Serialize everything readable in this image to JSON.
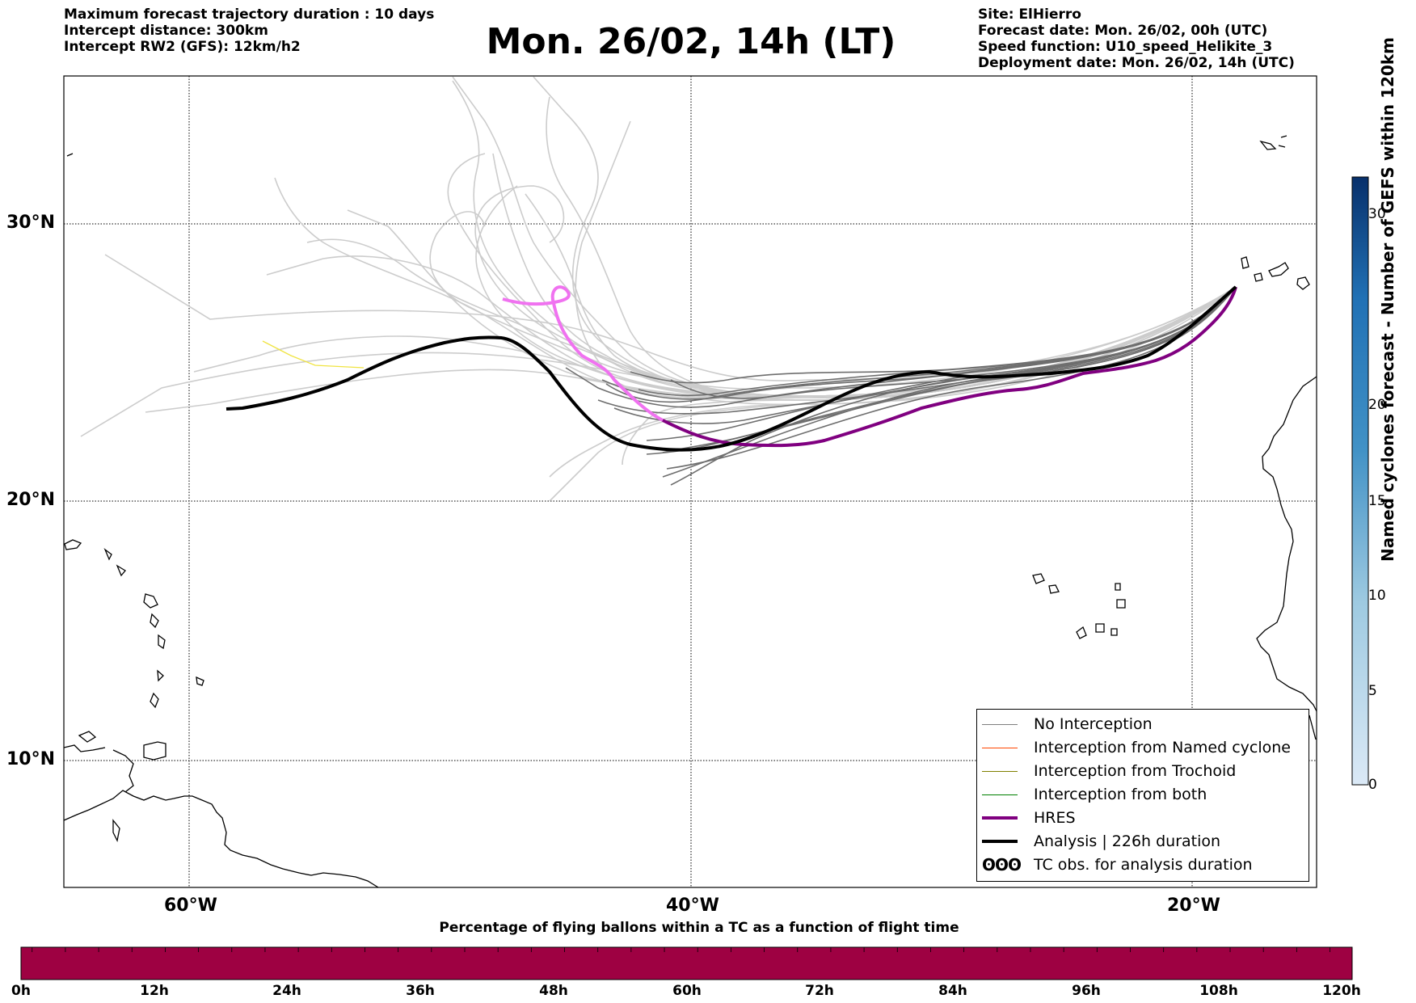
{
  "header": {
    "left_lines": [
      "Maximum forecast trajectory duration : 10 days",
      "Intercept distance: 300km",
      "Intercept RW2 (GFS):  12km/h2"
    ],
    "title": "Mon. 26/02, 14h (LT)",
    "right_lines": [
      "Site: ElHierro",
      "Forecast date: Mon. 26/02, 00h (UTC)",
      "Speed function: U10_speed_Helikite_3",
      "Deployment date: Mon. 26/02, 14h (UTC)"
    ]
  },
  "map": {
    "lon_range": [
      -65,
      -15
    ],
    "lat_range": [
      5,
      35
    ],
    "lat_labels": [
      "30°N",
      "20°N",
      "10°N"
    ],
    "lon_labels": [
      "60°W",
      "40°W",
      "20°W"
    ],
    "gridlines": true
  },
  "legend": {
    "items": [
      {
        "label": "No Interception",
        "color": "#7f7f7f"
      },
      {
        "label": "Interception from Named cyclone",
        "color": "#ff4500"
      },
      {
        "label": "Interception from Trochoid",
        "color": "#808000"
      },
      {
        "label": "Interception from both",
        "color": "#008000"
      },
      {
        "label": "HRES",
        "color": "#800080"
      },
      {
        "label": "Analysis | 226h duration",
        "color": "#000000"
      },
      {
        "label": "TC obs. for analysis duration",
        "glyph": "ʘʘʘ"
      }
    ]
  },
  "colorbar": {
    "label": "Named cyclones forecast - Number of GEFS within 120km",
    "ticks": [
      "0",
      "5",
      "10",
      "15",
      "20",
      "30"
    ],
    "colors": [
      "#dbe9f6",
      "#c6dbef",
      "#9ecae1",
      "#6baed6",
      "#4292c6",
      "#2171b5",
      "#08519c",
      "#08306b"
    ]
  },
  "time_bar": {
    "title": "Percentage of flying ballons within a TC as a function of flight time",
    "ticks": [
      "0h",
      "12h",
      "24h",
      "36h",
      "48h",
      "60h",
      "72h",
      "84h",
      "96h",
      "108h",
      "120h"
    ],
    "fill_color": "#9e0142"
  },
  "colors": {
    "ensemble_gray": "#cccccc",
    "ensemble_dark": "#6e6e6e",
    "hres": "#800080",
    "hres_early": "#f072f0",
    "analysis": "#000000",
    "yellow_track": "#f0e442"
  }
}
